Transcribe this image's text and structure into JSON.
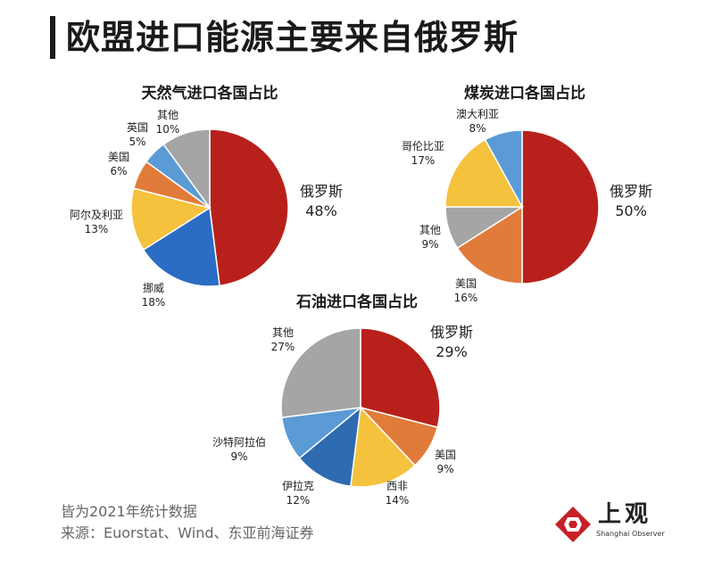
{
  "title": "欧盟进口能源主要来自俄罗斯",
  "chart_data": [
    {
      "type": "pie",
      "title": "天然气进口各国占比",
      "unit": "%",
      "slices": [
        {
          "name": "俄罗斯",
          "value": 48,
          "label": "48%",
          "color": "#b8211b"
        },
        {
          "name": "挪威",
          "value": 18,
          "label": "18%",
          "color": "#2b6cc4"
        },
        {
          "name": "阿尔及利亚",
          "value": 13,
          "label": "13%",
          "color": "#f5c23d"
        },
        {
          "name": "美国",
          "value": 6,
          "label": "6%",
          "color": "#e17b3a"
        },
        {
          "name": "英国",
          "value": 5,
          "label": "5%",
          "color": "#5b9bd5"
        },
        {
          "name": "其他",
          "value": 10,
          "label": "10%",
          "color": "#a5a5a5"
        }
      ]
    },
    {
      "type": "pie",
      "title": "煤炭进口各国占比",
      "unit": "%",
      "slices": [
        {
          "name": "俄罗斯",
          "value": 50,
          "label": "50%",
          "color": "#b8211b"
        },
        {
          "name": "美国",
          "value": 16,
          "label": "16%",
          "color": "#e17b3a"
        },
        {
          "name": "其他",
          "value": 9,
          "label": "9%",
          "color": "#a5a5a5"
        },
        {
          "name": "哥伦比亚",
          "value": 17,
          "label": "17%",
          "color": "#f5c23d"
        },
        {
          "name": "澳大利亚",
          "value": 8,
          "label": "8%",
          "color": "#5b9bd5"
        }
      ]
    },
    {
      "type": "pie",
      "title": "石油进口各国占比",
      "unit": "%",
      "slices": [
        {
          "name": "俄罗斯",
          "value": 29,
          "label": "29%",
          "color": "#b8211b"
        },
        {
          "name": "美国",
          "value": 9,
          "label": "9%",
          "color": "#e17b3a"
        },
        {
          "name": "西非",
          "value": 14,
          "label": "14%",
          "color": "#f5c23d"
        },
        {
          "name": "伊拉克",
          "value": 12,
          "label": "12%",
          "color": "#2e6bb0"
        },
        {
          "name": "沙特阿拉伯",
          "value": 9,
          "label": "9%",
          "color": "#5b9bd5"
        },
        {
          "name": "其他",
          "value": 27,
          "label": "27%",
          "color": "#a5a5a5"
        }
      ]
    }
  ],
  "footnote": {
    "line1": "皆为2021年统计数据",
    "line2": "来源：Euorstat、Wind、东亚前海证券"
  },
  "logo": {
    "name": "上观",
    "subtitle": "Shanghai Observer"
  }
}
